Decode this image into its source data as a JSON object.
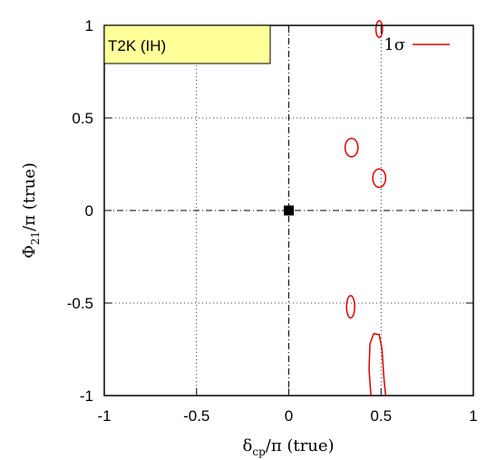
{
  "chart_data": {
    "type": "scatter",
    "title": "",
    "xlabel": {
      "main": "δ",
      "sub": "cp",
      "rest": "/π (true)"
    },
    "ylabel": {
      "main": "Φ",
      "sub": "21",
      "rest": "/π (true)"
    },
    "xlim": [
      -1,
      1
    ],
    "ylim": [
      -1,
      1
    ],
    "xticks": [
      "-1",
      "-0.5",
      "0",
      "0.5",
      "1"
    ],
    "yticks": [
      "1",
      "0.5",
      "0",
      "-0.5",
      "-1"
    ],
    "xtick_values": [
      -1,
      -0.5,
      0,
      0.5,
      1
    ],
    "ytick_values": [
      1,
      0.5,
      0,
      -0.5,
      -1
    ],
    "grid": "dotted at ±0.5; dash-dot axes at 0",
    "annotation_box": "T2K (IH)",
    "annotation_box_color": "#ffff99",
    "legend": {
      "label": "1σ",
      "color": "#e00000",
      "position": "top-right"
    },
    "true_point": {
      "x": 0,
      "y": 0,
      "marker": "filled-square"
    },
    "contours": [
      {
        "name": "contour-top",
        "center": [
          0.49,
          0.98
        ],
        "radii": [
          0.018,
          0.045
        ]
      },
      {
        "name": "contour-upper-left",
        "center": [
          0.34,
          0.34
        ],
        "radii": [
          0.035,
          0.05
        ]
      },
      {
        "name": "contour-upper-right",
        "center": [
          0.49,
          0.175
        ],
        "radii": [
          0.035,
          0.05
        ]
      },
      {
        "name": "contour-lower-left",
        "center": [
          0.335,
          -0.52
        ],
        "radii": [
          0.022,
          0.06
        ]
      }
    ],
    "contour_bottom": [
      [
        0.445,
        -1
      ],
      [
        0.435,
        -0.86
      ],
      [
        0.44,
        -0.72
      ],
      [
        0.46,
        -0.665
      ],
      [
        0.49,
        -0.67
      ],
      [
        0.505,
        -0.75
      ],
      [
        0.515,
        -0.9
      ],
      [
        0.525,
        -1
      ]
    ]
  }
}
